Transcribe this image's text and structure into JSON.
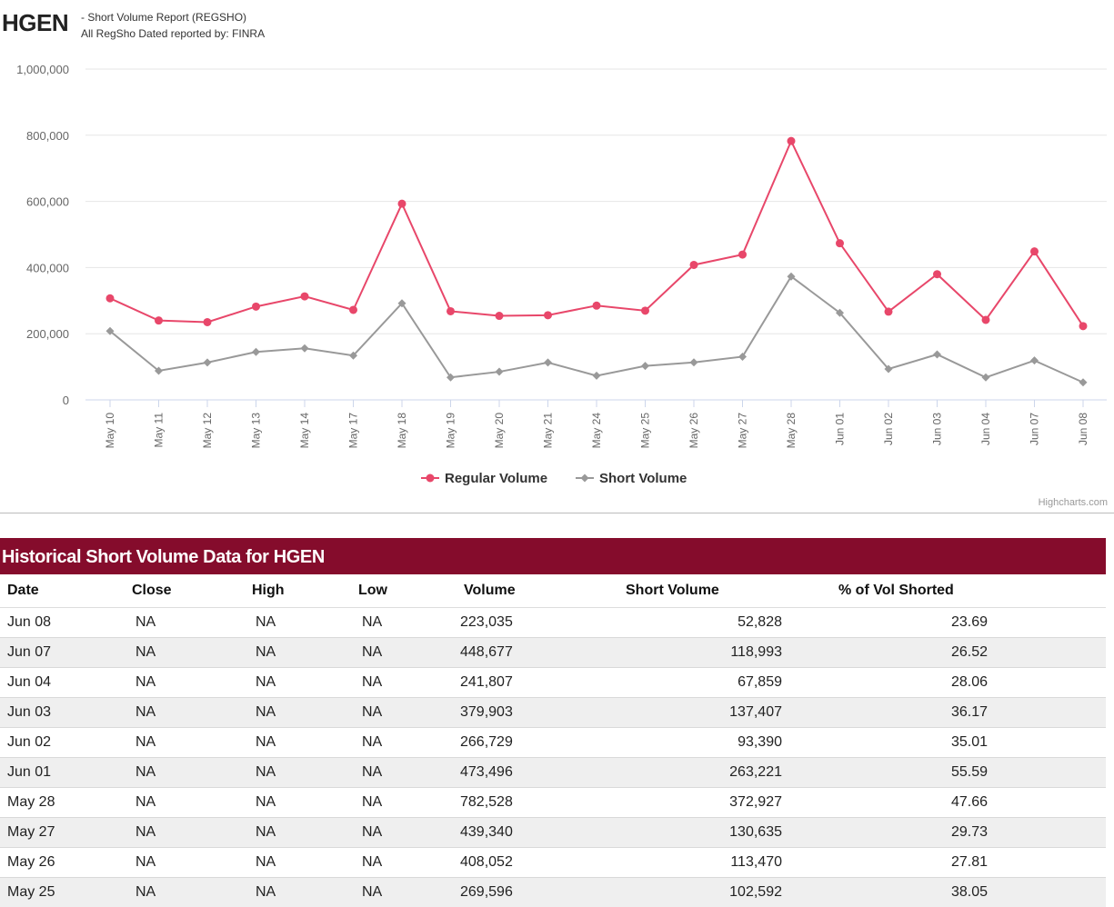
{
  "header": {
    "ticker": "HGEN",
    "subtitle1": "- Short Volume Report  (REGSHO)",
    "subtitle2": "All RegSho Dated reported by: FINRA"
  },
  "chart_data": {
    "type": "line",
    "categories": [
      "May 10",
      "May 11",
      "May 12",
      "May 13",
      "May 14",
      "May 17",
      "May 18",
      "May 19",
      "May 20",
      "May 21",
      "May 24",
      "May 25",
      "May 26",
      "May 27",
      "May 28",
      "Jun 01",
      "Jun 02",
      "Jun 03",
      "Jun 04",
      "Jun 07",
      "Jun 08"
    ],
    "series": [
      {
        "name": "Regular Volume",
        "color": "#e8476a",
        "marker": "circle",
        "values": [
          307000,
          240000,
          235000,
          282000,
          313000,
          272000,
          593000,
          268000,
          254000,
          256000,
          285000,
          269596,
          408052,
          439340,
          782528,
          473496,
          266729,
          379903,
          241807,
          448677,
          223035
        ]
      },
      {
        "name": "Short Volume",
        "color": "#999999",
        "marker": "diamond",
        "values": [
          208000,
          88000,
          113000,
          145000,
          156000,
          134000,
          292000,
          68000,
          85000,
          113000,
          73000,
          102592,
          113470,
          130635,
          372927,
          263221,
          93390,
          137407,
          67859,
          118993,
          52828
        ]
      }
    ],
    "ylim": [
      0,
      1000000
    ],
    "yticks": [
      "0",
      "200,000",
      "400,000",
      "600,000",
      "800,000",
      "1,000,000"
    ],
    "legend": "bottom-center",
    "credit": "Highcharts.com"
  },
  "table": {
    "title": "Historical Short Volume Data for HGEN",
    "headers": [
      "Date",
      "Close",
      "High",
      "Low",
      "Volume",
      "Short Volume",
      "% of Vol Shorted"
    ],
    "rows": [
      [
        "Jun 08",
        "NA",
        "NA",
        "NA",
        "223,035",
        "52,828",
        "23.69"
      ],
      [
        "Jun 07",
        "NA",
        "NA",
        "NA",
        "448,677",
        "118,993",
        "26.52"
      ],
      [
        "Jun 04",
        "NA",
        "NA",
        "NA",
        "241,807",
        "67,859",
        "28.06"
      ],
      [
        "Jun 03",
        "NA",
        "NA",
        "NA",
        "379,903",
        "137,407",
        "36.17"
      ],
      [
        "Jun 02",
        "NA",
        "NA",
        "NA",
        "266,729",
        "93,390",
        "35.01"
      ],
      [
        "Jun 01",
        "NA",
        "NA",
        "NA",
        "473,496",
        "263,221",
        "55.59"
      ],
      [
        "May 28",
        "NA",
        "NA",
        "NA",
        "782,528",
        "372,927",
        "47.66"
      ],
      [
        "May 27",
        "NA",
        "NA",
        "NA",
        "439,340",
        "130,635",
        "29.73"
      ],
      [
        "May 26",
        "NA",
        "NA",
        "NA",
        "408,052",
        "113,470",
        "27.81"
      ],
      [
        "May 25",
        "NA",
        "NA",
        "NA",
        "269,596",
        "102,592",
        "38.05"
      ]
    ]
  }
}
